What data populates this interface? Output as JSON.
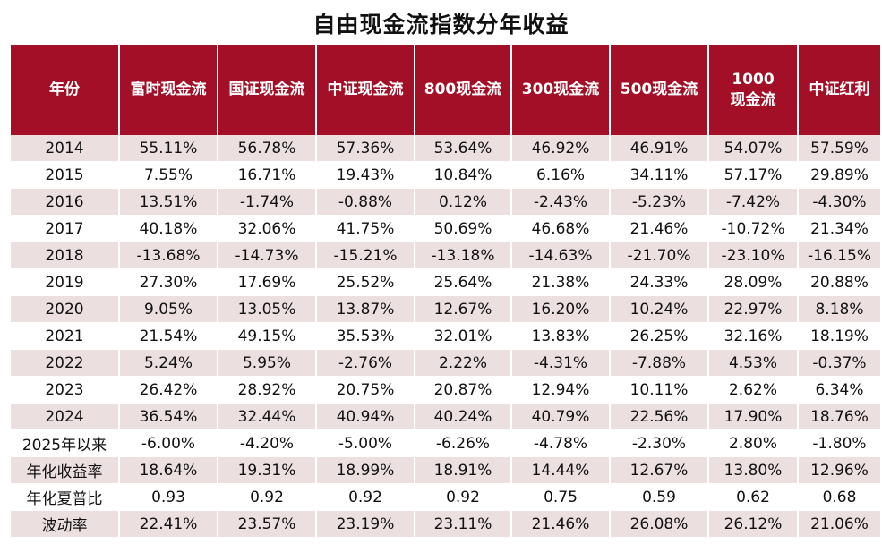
{
  "title": "自由现金流指数分年收益",
  "chart_data": {
    "type": "table",
    "title": "自由现金流指数分年收益",
    "columns": [
      "年份",
      "富时现金流",
      "国证现金流",
      "中证现金流",
      "800现金流",
      "300现金流",
      "500现金流",
      "1000\n现金流",
      "中证红利"
    ],
    "rows": [
      [
        "2014",
        "55.11%",
        "56.78%",
        "57.36%",
        "53.64%",
        "46.92%",
        "46.91%",
        "54.07%",
        "57.59%"
      ],
      [
        "2015",
        "7.55%",
        "16.71%",
        "19.43%",
        "10.84%",
        "6.16%",
        "34.11%",
        "57.17%",
        "29.89%"
      ],
      [
        "2016",
        "13.51%",
        "-1.74%",
        "-0.88%",
        "0.12%",
        "-2.43%",
        "-5.23%",
        "-7.42%",
        "-4.30%"
      ],
      [
        "2017",
        "40.18%",
        "32.06%",
        "41.75%",
        "50.69%",
        "46.68%",
        "21.46%",
        "-10.72%",
        "21.34%"
      ],
      [
        "2018",
        "-13.68%",
        "-14.73%",
        "-15.21%",
        "-13.18%",
        "-14.63%",
        "-21.70%",
        "-23.10%",
        "-16.15%"
      ],
      [
        "2019",
        "27.30%",
        "17.69%",
        "25.52%",
        "25.64%",
        "21.38%",
        "24.33%",
        "28.09%",
        "20.88%"
      ],
      [
        "2020",
        "9.05%",
        "13.05%",
        "13.87%",
        "12.67%",
        "16.20%",
        "10.24%",
        "22.97%",
        "8.18%"
      ],
      [
        "2021",
        "21.54%",
        "49.15%",
        "35.53%",
        "32.01%",
        "13.83%",
        "26.25%",
        "32.16%",
        "18.19%"
      ],
      [
        "2022",
        "5.24%",
        "5.95%",
        "-2.76%",
        "2.22%",
        "-4.31%",
        "-7.88%",
        "4.53%",
        "-0.37%"
      ],
      [
        "2023",
        "26.42%",
        "28.92%",
        "20.75%",
        "20.87%",
        "12.94%",
        "10.11%",
        "2.62%",
        "6.34%"
      ],
      [
        "2024",
        "36.54%",
        "32.44%",
        "40.94%",
        "40.24%",
        "40.79%",
        "22.56%",
        "17.90%",
        "18.76%"
      ],
      [
        "2025年以来",
        "-6.00%",
        "-4.20%",
        "-5.00%",
        "-6.26%",
        "-4.78%",
        "-2.30%",
        "2.80%",
        "-1.80%"
      ],
      [
        "年化收益率",
        "18.64%",
        "19.31%",
        "18.99%",
        "18.91%",
        "14.44%",
        "12.67%",
        "13.80%",
        "12.96%"
      ],
      [
        "年化夏普比",
        "0.93",
        "0.92",
        "0.92",
        "0.92",
        "0.75",
        "0.59",
        "0.62",
        "0.68"
      ],
      [
        "波动率",
        "22.41%",
        "23.57%",
        "23.19%",
        "23.11%",
        "21.46%",
        "26.08%",
        "26.12%",
        "21.06%"
      ]
    ]
  },
  "colors": {
    "header_bg": "#a30f26",
    "header_text": "#ffffff",
    "stripe_bg": "#ebdfe0",
    "row_bg": "#ffffff"
  }
}
